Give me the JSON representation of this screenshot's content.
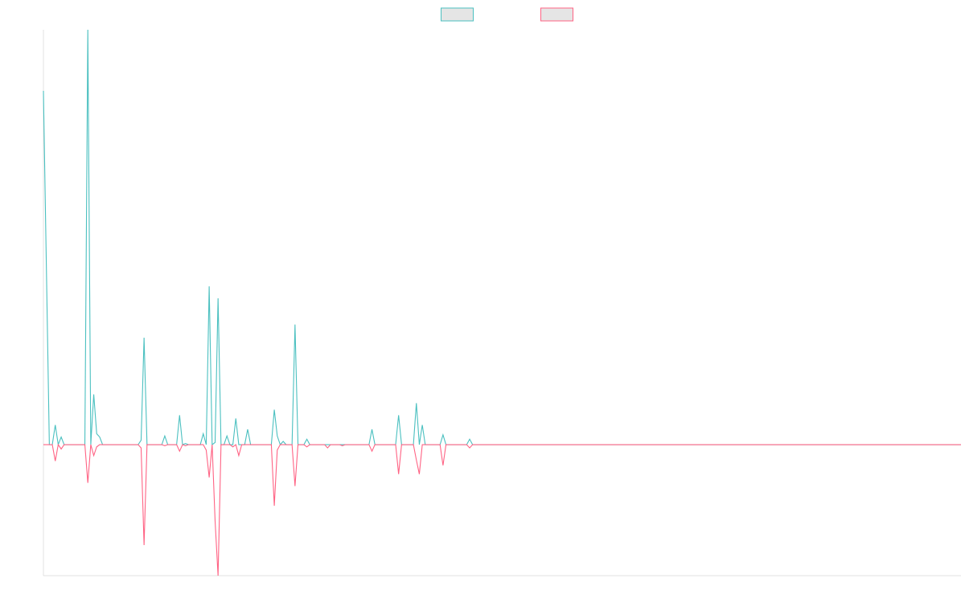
{
  "chart_data": {
    "type": "line",
    "title": "",
    "xlabel": "",
    "ylabel": "",
    "x_range": [
      0,
      310
    ],
    "ylim": [
      -12,
      38
    ],
    "grid": false,
    "legend": {
      "placement": "top-center"
    },
    "series": [
      {
        "color": "#4bc0c0",
        "fill": "#e5e5e5",
        "points": [
          [
            0,
            32.4
          ],
          [
            2,
            0
          ],
          [
            3,
            0
          ],
          [
            4,
            1.8
          ],
          [
            5,
            0
          ],
          [
            6,
            0.7
          ],
          [
            7,
            0
          ],
          [
            12,
            0
          ],
          [
            14,
            0
          ],
          [
            15,
            38
          ],
          [
            16,
            0
          ],
          [
            17,
            4.6
          ],
          [
            18,
            1.0
          ],
          [
            19,
            0.7
          ],
          [
            20,
            0
          ],
          [
            30,
            0
          ],
          [
            32,
            0
          ],
          [
            33,
            0.4
          ],
          [
            34,
            9.8
          ],
          [
            35,
            0
          ],
          [
            40,
            0
          ],
          [
            41,
            0.8
          ],
          [
            42,
            0
          ],
          [
            45,
            0
          ],
          [
            46,
            2.7
          ],
          [
            47,
            0
          ],
          [
            48,
            0.1
          ],
          [
            49,
            0
          ],
          [
            53,
            0
          ],
          [
            54,
            1.0
          ],
          [
            55,
            0
          ],
          [
            56,
            14.5
          ],
          [
            57,
            0
          ],
          [
            58,
            0.2
          ],
          [
            59,
            13.4
          ],
          [
            60,
            0
          ],
          [
            61,
            0
          ],
          [
            62,
            0.8
          ],
          [
            63,
            0
          ],
          [
            64,
            0
          ],
          [
            65,
            2.4
          ],
          [
            66,
            0
          ],
          [
            68,
            0
          ],
          [
            69,
            1.4
          ],
          [
            70,
            0
          ],
          [
            75,
            0
          ],
          [
            77,
            0
          ],
          [
            78,
            3.2
          ],
          [
            79,
            0.8
          ],
          [
            80,
            0
          ],
          [
            81,
            0.3
          ],
          [
            82,
            0
          ],
          [
            84,
            0
          ],
          [
            85,
            11.0
          ],
          [
            86,
            0
          ],
          [
            88,
            0
          ],
          [
            89,
            0.5
          ],
          [
            90,
            0
          ],
          [
            110,
            0
          ],
          [
            111,
            1.4
          ],
          [
            112,
            0
          ],
          [
            119,
            0
          ],
          [
            120,
            2.7
          ],
          [
            121,
            0
          ],
          [
            125,
            0
          ],
          [
            126,
            3.8
          ],
          [
            127,
            0
          ],
          [
            128,
            1.8
          ],
          [
            129,
            0
          ],
          [
            134,
            0
          ],
          [
            135,
            0.9
          ],
          [
            136,
            0
          ],
          [
            143,
            0
          ],
          [
            144,
            0.5
          ],
          [
            145,
            0
          ],
          [
            310,
            0
          ]
        ]
      },
      {
        "color": "#ff6384",
        "fill": "#e5e5e5",
        "points": [
          [
            0,
            0
          ],
          [
            3,
            0
          ],
          [
            4,
            -1.5
          ],
          [
            5,
            0
          ],
          [
            6,
            -0.4
          ],
          [
            7,
            0
          ],
          [
            14,
            0
          ],
          [
            15,
            -3.5
          ],
          [
            16,
            0
          ],
          [
            17,
            -1.0
          ],
          [
            18,
            -0.2
          ],
          [
            19,
            0
          ],
          [
            30,
            0
          ],
          [
            32,
            0
          ],
          [
            33,
            -0.3
          ],
          [
            34,
            -9.2
          ],
          [
            35,
            0
          ],
          [
            40,
            0
          ],
          [
            41,
            -0.1
          ],
          [
            42,
            0
          ],
          [
            45,
            0
          ],
          [
            46,
            -0.6
          ],
          [
            47,
            0
          ],
          [
            48,
            -0.1
          ],
          [
            49,
            0
          ],
          [
            54,
            0
          ],
          [
            55,
            -0.5
          ],
          [
            56,
            -3.0
          ],
          [
            57,
            0
          ],
          [
            58,
            -7.0
          ],
          [
            59,
            -12.0
          ],
          [
            60,
            0
          ],
          [
            63,
            0
          ],
          [
            64,
            -0.2
          ],
          [
            65,
            0
          ],
          [
            66,
            -1.0
          ],
          [
            67,
            0
          ],
          [
            77,
            0
          ],
          [
            78,
            -5.6
          ],
          [
            79,
            -0.5
          ],
          [
            80,
            0
          ],
          [
            84,
            0
          ],
          [
            85,
            -3.8
          ],
          [
            86,
            0
          ],
          [
            88,
            0
          ],
          [
            89,
            -0.2
          ],
          [
            90,
            0
          ],
          [
            95,
            0
          ],
          [
            96,
            -0.3
          ],
          [
            97,
            0
          ],
          [
            100,
            0
          ],
          [
            101,
            -0.1
          ],
          [
            102,
            0
          ],
          [
            110,
            0
          ],
          [
            111,
            -0.6
          ],
          [
            112,
            0
          ],
          [
            119,
            0
          ],
          [
            120,
            -2.7
          ],
          [
            121,
            0
          ],
          [
            125,
            0
          ],
          [
            126,
            -1.4
          ],
          [
            127,
            -2.7
          ],
          [
            128,
            0
          ],
          [
            134,
            0
          ],
          [
            135,
            -1.9
          ],
          [
            136,
            0
          ],
          [
            143,
            0
          ],
          [
            144,
            -0.3
          ],
          [
            145,
            0
          ],
          [
            310,
            0
          ]
        ]
      }
    ]
  }
}
